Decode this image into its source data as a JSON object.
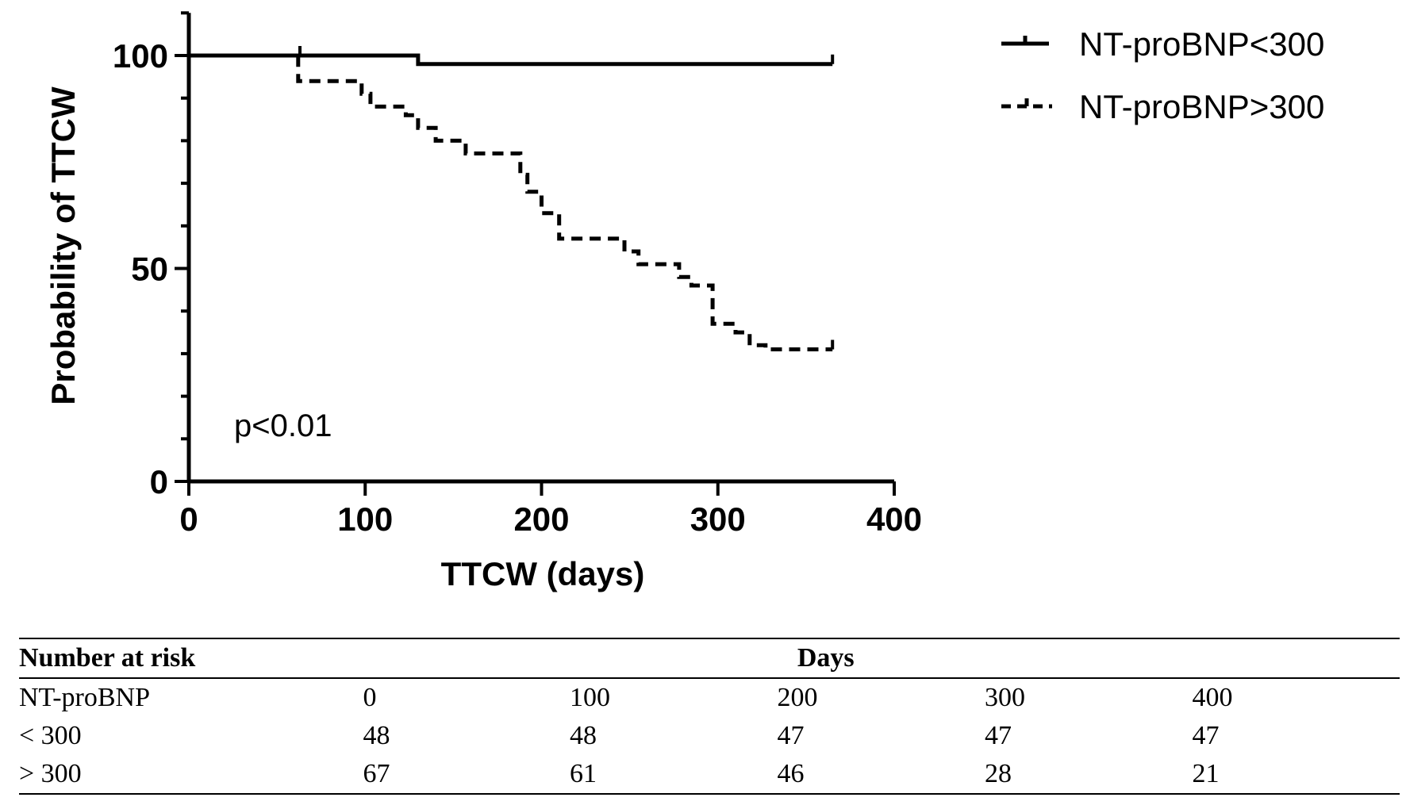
{
  "chart_data": {
    "type": "line",
    "xlabel": "TTCW (days)",
    "ylabel": "Probability of TTCW",
    "xlim": [
      0,
      400
    ],
    "ylim": [
      0,
      110
    ],
    "x_ticks": [
      0,
      100,
      200,
      300,
      400
    ],
    "y_ticks": [
      0,
      50,
      100
    ],
    "annotation": "p<0.01",
    "legend_position": "top-right",
    "series": [
      {
        "name": "NT-proBNP<300",
        "style": "solid",
        "x": [
          0,
          130,
          130,
          365
        ],
        "y": [
          100,
          100,
          98,
          98
        ],
        "censor_x": [
          63,
          365
        ]
      },
      {
        "name": "NT-proBNP>300",
        "style": "dashed",
        "x": [
          0,
          62,
          62,
          98,
          98,
          103,
          103,
          123,
          123,
          130,
          130,
          140,
          140,
          157,
          157,
          188,
          188,
          192,
          192,
          200,
          200,
          210,
          210,
          247,
          247,
          255,
          255,
          278,
          278,
          285,
          285,
          297,
          297,
          310,
          310,
          318,
          318,
          327,
          327,
          365
        ],
        "y": [
          100,
          100,
          94,
          94,
          91,
          91,
          88,
          88,
          86,
          86,
          83,
          83,
          80,
          80,
          77,
          77,
          72,
          72,
          68,
          68,
          63,
          63,
          57,
          57,
          54,
          54,
          51,
          51,
          48,
          48,
          46,
          46,
          37,
          37,
          35,
          35,
          32,
          32,
          31,
          31
        ],
        "censor_x": [
          365
        ]
      }
    ]
  },
  "risk_table": {
    "header_left": "Number at risk",
    "header_right": "Days",
    "rows": [
      [
        "NT-proBNP",
        "0",
        "100",
        "200",
        "300",
        "400"
      ],
      [
        "< 300",
        "48",
        "48",
        "47",
        "47",
        "47"
      ],
      [
        "> 300",
        "67",
        "61",
        "46",
        "28",
        "21"
      ]
    ]
  }
}
